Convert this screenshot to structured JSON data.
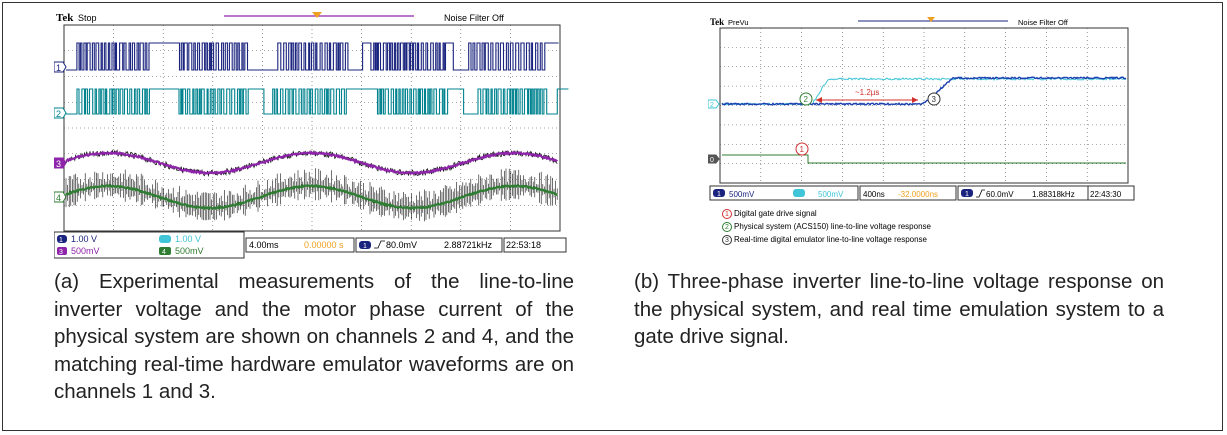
{
  "panel_a": {
    "header": {
      "brand": "Tek",
      "state": "Stop",
      "filter": "Noise Filter Off"
    },
    "channels": [
      "1",
      "2",
      "3",
      "4"
    ],
    "status": {
      "ch1_scale": "1.00 V",
      "ch2_scale": "1.00 V",
      "ch3_scale": "500mV",
      "ch4_scale": "500mV",
      "ch3_badge": "3",
      "ch4_badge": "4",
      "timebase": "4.00ms",
      "delay": "0.00000 s",
      "trigger": "80.0mV",
      "frequency": "2.88721kHz",
      "clock": "22:53:18"
    },
    "caption": "(a) Experimental measurements of the line-to-line inverter voltage and the motor phase current of the physical system are shown on channels 2 and 4, and the matching real-time hardware emulator waveforms are on channels 1 and 3.",
    "colors": {
      "ch1": "#1a237e",
      "ch2": "#00838f",
      "ch3": "#8e24aa",
      "ch4": "#2e7d32"
    }
  },
  "panel_b": {
    "header": {
      "brand": "Tek",
      "state": "PreVu",
      "filter": "Noise Filter Off"
    },
    "annotation": "~1.2µs",
    "markers": [
      "1",
      "2",
      "3"
    ],
    "status": {
      "ch1_scale": "500mV",
      "ch2_scale": "500mV",
      "timebase": "400ns",
      "delay": "-32.0000ns",
      "trigger": "60.0mV",
      "frequency": "1.88318kHz",
      "clock": "22:43:30"
    },
    "legend": [
      {
        "num": "1",
        "text": "Digital gate drive signal"
      },
      {
        "num": "2",
        "text": "Physical system (ACS150) line-to-line voltage response"
      },
      {
        "num": "3",
        "text": "Real-time digital emulator line-to-line voltage response"
      }
    ],
    "caption": "(b) Three-phase inverter line-to-line voltage response on the physical system, and real time emulation system to a gate drive signal."
  }
}
